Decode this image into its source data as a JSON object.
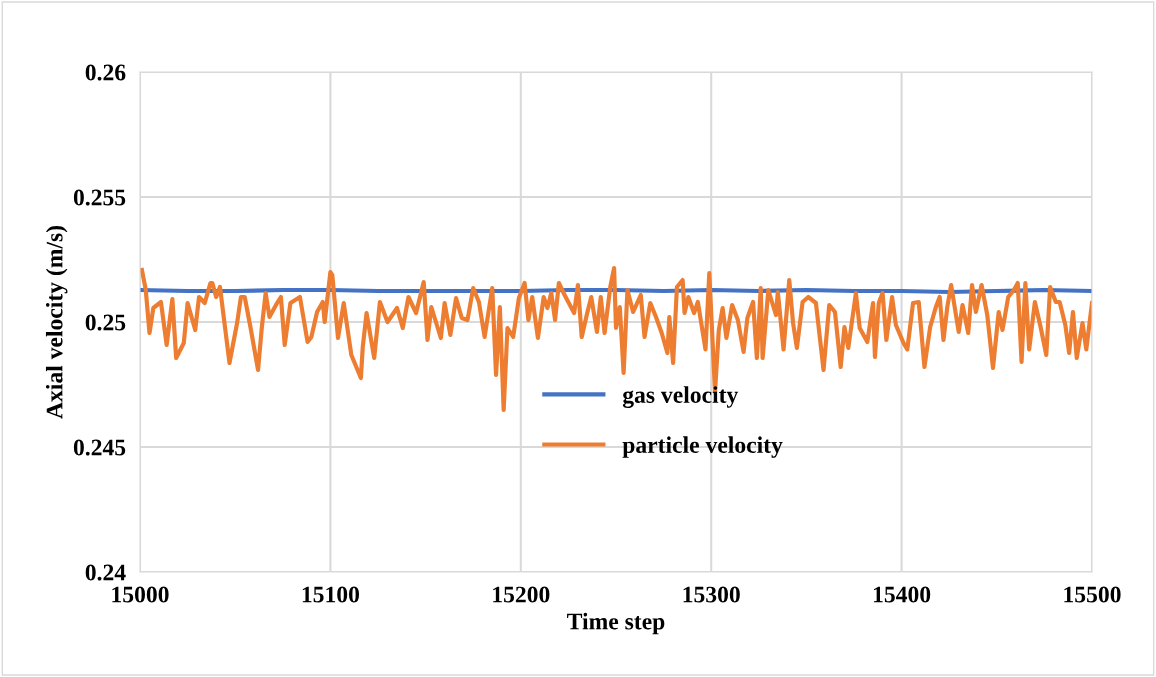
{
  "chart_data": {
    "type": "line",
    "xlabel": "Time step",
    "ylabel": "Axial velocity (m/s)",
    "xlim": [
      15000,
      15500
    ],
    "xticks": [
      15000,
      15100,
      15200,
      15300,
      15400,
      15500
    ],
    "ylim": [
      0.24,
      0.26
    ],
    "yticks": [
      0.24,
      0.245,
      0.25,
      0.255,
      0.26
    ],
    "grid": true,
    "legend": "center",
    "marker": "none",
    "line_style": "solid",
    "series": [
      {
        "name": "gas velocity",
        "color": "#4472c4",
        "x": [
          15000,
          15025,
          15050,
          15075,
          15100,
          15125,
          15150,
          15175,
          15200,
          15225,
          15250,
          15275,
          15300,
          15325,
          15350,
          15375,
          15400,
          15425,
          15450,
          15475,
          15500
        ],
        "values": [
          0.25128,
          0.25124,
          0.25124,
          0.25128,
          0.25128,
          0.25124,
          0.25124,
          0.25124,
          0.25124,
          0.25128,
          0.25128,
          0.25124,
          0.25128,
          0.25124,
          0.25128,
          0.25124,
          0.25124,
          0.2512,
          0.25124,
          0.25128,
          0.25124
        ]
      },
      {
        "name": "particle velocity",
        "color": "#ed7d31",
        "x": [
          15001,
          15003,
          15005,
          15007,
          15011,
          15014,
          15017,
          15019,
          15023,
          15025,
          15029,
          15031,
          15034,
          15037,
          15038,
          15040,
          15042,
          15047,
          15051,
          15053,
          15055,
          15058,
          15062,
          15064,
          15066,
          15068,
          15072,
          15074,
          15076,
          15079,
          15084,
          15088,
          15090,
          15093,
          15096,
          15097,
          15100,
          15101,
          15104,
          15107,
          15111,
          15116,
          15117,
          15119,
          15123,
          15126,
          15130,
          15135,
          15138,
          15141,
          15145,
          15149,
          15151,
          15153,
          15158,
          15160,
          15163,
          15166,
          15169,
          15172,
          15175,
          15178,
          15181,
          15185,
          15187,
          15189,
          15191,
          15193,
          15196,
          15199,
          15202,
          15204,
          15206,
          15209,
          15212,
          15214,
          15216,
          15218,
          15220,
          15223,
          15228,
          15230,
          15232,
          15235,
          15237,
          15240,
          15242,
          15244,
          15247,
          15249,
          15250,
          15252,
          15254,
          15256,
          15259,
          15263,
          15265,
          15268,
          15271,
          15274,
          15277,
          15278,
          15280,
          15282,
          15285,
          15286,
          15288,
          15291,
          15293,
          15297,
          15299,
          15302,
          15304,
          15306,
          15308,
          15311,
          15314,
          15317,
          15319,
          15322,
          15324,
          15326,
          15327,
          15330,
          15334,
          15335,
          15338,
          15341,
          15343,
          15345,
          15348,
          15351,
          15355,
          15359,
          15362,
          15365,
          15368,
          15370,
          15372,
          15376,
          15378,
          15382,
          15385,
          15386,
          15388,
          15390,
          15392,
          15395,
          15397,
          15401,
          15403,
          15406,
          15409,
          15412,
          15415,
          15418,
          15420,
          15422,
          15424,
          15426,
          15430,
          15432,
          15435,
          15437,
          15439,
          15442,
          15445,
          15448,
          15451,
          15453,
          15456,
          15459,
          15461,
          15463,
          15465,
          15467,
          15470,
          15473,
          15476,
          15478,
          15481,
          15483,
          15486,
          15488,
          15490,
          15492,
          15495,
          15497,
          15500
        ],
        "values": [
          0.25208,
          0.2513,
          0.24956,
          0.25056,
          0.2508,
          0.24908,
          0.25092,
          0.24856,
          0.24916,
          0.25076,
          0.24968,
          0.251,
          0.25076,
          0.25156,
          0.25156,
          0.251,
          0.2514,
          0.24836,
          0.24996,
          0.251,
          0.251,
          0.2498,
          0.24808,
          0.2498,
          0.25116,
          0.2502,
          0.25076,
          0.251,
          0.24908,
          0.25076,
          0.251,
          0.2492,
          0.2494,
          0.2504,
          0.2508,
          0.25,
          0.252,
          0.25188,
          0.24936,
          0.25076,
          0.24868,
          0.24776,
          0.249,
          0.25036,
          0.24856,
          0.2508,
          0.25,
          0.25056,
          0.24976,
          0.251,
          0.25036,
          0.2516,
          0.24928,
          0.2506,
          0.24936,
          0.25076,
          0.24948,
          0.25096,
          0.25016,
          0.25008,
          0.25136,
          0.2508,
          0.2494,
          0.25136,
          0.24788,
          0.2506,
          0.24648,
          0.24976,
          0.2494,
          0.25096,
          0.25156,
          0.25008,
          0.251,
          0.24936,
          0.251,
          0.25056,
          0.25116,
          0.25008,
          0.25156,
          0.25108,
          0.25036,
          0.25148,
          0.2494,
          0.2504,
          0.251,
          0.2496,
          0.251,
          0.24956,
          0.2514,
          0.25216,
          0.24976,
          0.2506,
          0.24796,
          0.25128,
          0.2504,
          0.25108,
          0.2494,
          0.25076,
          0.2502,
          0.24956,
          0.24876,
          0.2502,
          0.24836,
          0.2514,
          0.25168,
          0.25036,
          0.251,
          0.25036,
          0.2508,
          0.2489,
          0.25196,
          0.2472,
          0.24968,
          0.25056,
          0.24936,
          0.25068,
          0.25008,
          0.2488,
          0.25016,
          0.2508,
          0.24856,
          0.25136,
          0.24856,
          0.25128,
          0.25028,
          0.2512,
          0.2489,
          0.25168,
          0.24996,
          0.24896,
          0.2508,
          0.251,
          0.25076,
          0.24808,
          0.25068,
          0.2504,
          0.2482,
          0.2498,
          0.24896,
          0.25116,
          0.24976,
          0.2492,
          0.25076,
          0.2486,
          0.25076,
          0.25116,
          0.24928,
          0.251,
          0.24988,
          0.24916,
          0.2489,
          0.25076,
          0.2508,
          0.2482,
          0.2498,
          0.2506,
          0.251,
          0.24928,
          0.2506,
          0.25148,
          0.2496,
          0.25068,
          0.24956,
          0.25148,
          0.2504,
          0.25148,
          0.25028,
          0.24816,
          0.2504,
          0.24968,
          0.251,
          0.25128,
          0.25156,
          0.2484,
          0.25156,
          0.2489,
          0.2508,
          0.2498,
          0.24868,
          0.2514,
          0.2508,
          0.2508,
          0.24988,
          0.24876,
          0.2504,
          0.24856,
          0.24996,
          0.2489,
          0.25076
        ]
      }
    ]
  }
}
